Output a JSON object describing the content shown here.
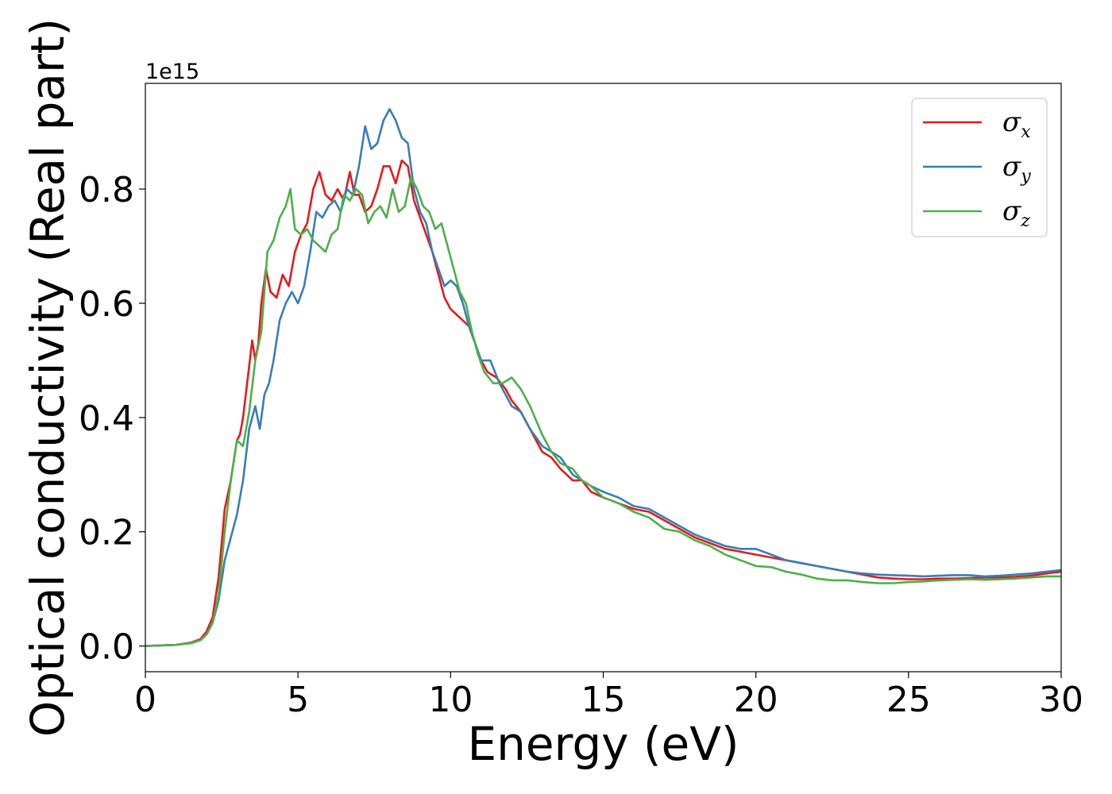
{
  "chart_data": {
    "type": "line",
    "xlabel": "Energy (eV)",
    "ylabel": "Optical conductivity (Real part)",
    "y_offset_label": "1e15",
    "xlim": [
      0,
      30
    ],
    "ylim": [
      -0.045,
      0.985
    ],
    "xticks": [
      0,
      5,
      10,
      15,
      20,
      25,
      30
    ],
    "xtick_labels": [
      "0",
      "5",
      "10",
      "15",
      "20",
      "25",
      "30"
    ],
    "yticks": [
      0.0,
      0.2,
      0.4,
      0.6,
      0.8
    ],
    "ytick_labels": [
      "0.0",
      "0.2",
      "0.4",
      "0.6",
      "0.8"
    ],
    "legend_position": "top-right",
    "grid": false,
    "series": [
      {
        "name": "σ",
        "subscript": "x",
        "color": "#e41a1c",
        "x": [
          0,
          1,
          1.5,
          1.8,
          2,
          2.2,
          2.4,
          2.6,
          2.8,
          3,
          3.1,
          3.2,
          3.4,
          3.5,
          3.6,
          3.7,
          3.8,
          3.95,
          4.1,
          4.3,
          4.5,
          4.7,
          4.9,
          5.1,
          5.3,
          5.5,
          5.7,
          5.9,
          6.1,
          6.3,
          6.5,
          6.7,
          6.85,
          7,
          7.2,
          7.4,
          7.6,
          7.8,
          8,
          8.2,
          8.4,
          8.6,
          8.8,
          9,
          9.2,
          9.4,
          9.6,
          9.8,
          10,
          10.2,
          10.4,
          10.6,
          10.8,
          11,
          11.2,
          11.5,
          11.8,
          12,
          12.3,
          12.6,
          13,
          13.3,
          13.6,
          14,
          14.3,
          14.6,
          15,
          15.5,
          16,
          16.5,
          17,
          17.5,
          18,
          18.5,
          19,
          19.5,
          20,
          20.5,
          21,
          21.5,
          22,
          22.5,
          23,
          23.5,
          24,
          24.5,
          25,
          25.5,
          26,
          26.5,
          27,
          27.5,
          28,
          28.5,
          29,
          29.5,
          30
        ],
        "y": [
          0,
          0.002,
          0.006,
          0.012,
          0.025,
          0.05,
          0.12,
          0.24,
          0.29,
          0.36,
          0.37,
          0.4,
          0.49,
          0.535,
          0.5,
          0.53,
          0.6,
          0.66,
          0.62,
          0.61,
          0.65,
          0.63,
          0.69,
          0.72,
          0.74,
          0.8,
          0.83,
          0.79,
          0.78,
          0.8,
          0.78,
          0.83,
          0.79,
          0.79,
          0.76,
          0.77,
          0.8,
          0.84,
          0.84,
          0.81,
          0.85,
          0.84,
          0.78,
          0.75,
          0.72,
          0.69,
          0.65,
          0.61,
          0.59,
          0.58,
          0.57,
          0.56,
          0.53,
          0.5,
          0.48,
          0.47,
          0.45,
          0.43,
          0.41,
          0.38,
          0.34,
          0.33,
          0.31,
          0.29,
          0.29,
          0.27,
          0.26,
          0.25,
          0.24,
          0.235,
          0.22,
          0.205,
          0.19,
          0.18,
          0.17,
          0.165,
          0.16,
          0.155,
          0.15,
          0.145,
          0.14,
          0.135,
          0.13,
          0.125,
          0.12,
          0.118,
          0.117,
          0.117,
          0.118,
          0.118,
          0.119,
          0.12,
          0.12,
          0.121,
          0.123,
          0.127,
          0.13
        ]
      },
      {
        "name": "σ",
        "subscript": "y",
        "color": "#377eb8",
        "x": [
          0,
          1,
          1.5,
          1.8,
          2,
          2.2,
          2.4,
          2.6,
          2.8,
          3,
          3.2,
          3.4,
          3.6,
          3.75,
          3.9,
          4.05,
          4.2,
          4.4,
          4.6,
          4.8,
          5,
          5.2,
          5.4,
          5.6,
          5.8,
          6,
          6.2,
          6.4,
          6.6,
          6.8,
          7,
          7.2,
          7.4,
          7.6,
          7.8,
          8,
          8.2,
          8.4,
          8.6,
          8.8,
          9,
          9.2,
          9.4,
          9.6,
          9.8,
          10,
          10.2,
          10.4,
          10.6,
          10.8,
          11,
          11.3,
          11.6,
          12,
          12.3,
          12.6,
          13,
          13.3,
          13.6,
          14,
          14.3,
          14.6,
          15,
          15.5,
          16,
          16.5,
          17,
          17.5,
          18,
          18.5,
          19,
          19.5,
          20,
          20.5,
          21,
          21.5,
          22,
          22.5,
          23,
          23.5,
          24,
          24.5,
          25,
          25.5,
          26,
          26.5,
          27,
          27.5,
          28,
          28.5,
          29,
          29.5,
          30
        ],
        "y": [
          0,
          0.002,
          0.005,
          0.01,
          0.02,
          0.04,
          0.08,
          0.15,
          0.19,
          0.23,
          0.29,
          0.38,
          0.42,
          0.38,
          0.44,
          0.46,
          0.5,
          0.57,
          0.6,
          0.62,
          0.6,
          0.63,
          0.69,
          0.76,
          0.75,
          0.77,
          0.78,
          0.76,
          0.8,
          0.79,
          0.84,
          0.91,
          0.87,
          0.88,
          0.92,
          0.94,
          0.92,
          0.89,
          0.88,
          0.8,
          0.76,
          0.74,
          0.69,
          0.66,
          0.63,
          0.64,
          0.63,
          0.6,
          0.56,
          0.53,
          0.5,
          0.5,
          0.46,
          0.42,
          0.41,
          0.38,
          0.35,
          0.34,
          0.33,
          0.3,
          0.29,
          0.28,
          0.27,
          0.26,
          0.245,
          0.24,
          0.225,
          0.21,
          0.195,
          0.185,
          0.175,
          0.17,
          0.17,
          0.16,
          0.15,
          0.145,
          0.14,
          0.135,
          0.13,
          0.127,
          0.125,
          0.124,
          0.123,
          0.122,
          0.123,
          0.124,
          0.124,
          0.122,
          0.123,
          0.125,
          0.127,
          0.13,
          0.133
        ]
      },
      {
        "name": "σ",
        "subscript": "z",
        "color": "#4daf4a",
        "x": [
          0,
          1,
          1.5,
          1.8,
          2,
          2.2,
          2.4,
          2.6,
          2.8,
          3,
          3.2,
          3.4,
          3.6,
          3.8,
          4,
          4.2,
          4.4,
          4.6,
          4.75,
          4.9,
          5.1,
          5.3,
          5.5,
          5.7,
          5.9,
          6.1,
          6.3,
          6.5,
          6.7,
          6.9,
          7.1,
          7.3,
          7.5,
          7.7,
          7.9,
          8.1,
          8.3,
          8.5,
          8.7,
          8.9,
          9.1,
          9.3,
          9.5,
          9.7,
          9.9,
          10.1,
          10.3,
          10.5,
          10.7,
          10.9,
          11.1,
          11.4,
          11.7,
          12,
          12.3,
          12.6,
          13,
          13.3,
          13.6,
          14,
          14.3,
          14.6,
          15,
          15.5,
          16,
          16.5,
          17,
          17.5,
          18,
          18.5,
          19,
          19.5,
          20,
          20.5,
          21,
          21.5,
          22,
          22.5,
          23,
          23.5,
          24,
          24.5,
          25,
          25.5,
          26,
          26.5,
          27,
          27.5,
          28,
          28.5,
          29,
          29.5,
          30
        ],
        "y": [
          0,
          0.002,
          0.005,
          0.01,
          0.02,
          0.04,
          0.09,
          0.2,
          0.29,
          0.36,
          0.35,
          0.41,
          0.5,
          0.55,
          0.69,
          0.71,
          0.75,
          0.77,
          0.8,
          0.73,
          0.72,
          0.73,
          0.71,
          0.7,
          0.69,
          0.72,
          0.73,
          0.79,
          0.78,
          0.8,
          0.79,
          0.74,
          0.76,
          0.77,
          0.75,
          0.8,
          0.76,
          0.77,
          0.82,
          0.8,
          0.77,
          0.76,
          0.73,
          0.74,
          0.7,
          0.66,
          0.62,
          0.6,
          0.55,
          0.51,
          0.48,
          0.46,
          0.46,
          0.47,
          0.45,
          0.42,
          0.37,
          0.34,
          0.32,
          0.31,
          0.29,
          0.28,
          0.26,
          0.25,
          0.235,
          0.225,
          0.205,
          0.2,
          0.185,
          0.175,
          0.16,
          0.15,
          0.14,
          0.138,
          0.13,
          0.125,
          0.118,
          0.115,
          0.115,
          0.112,
          0.11,
          0.11,
          0.112,
          0.113,
          0.115,
          0.116,
          0.117,
          0.116,
          0.117,
          0.118,
          0.12,
          0.122,
          0.122
        ]
      }
    ]
  }
}
